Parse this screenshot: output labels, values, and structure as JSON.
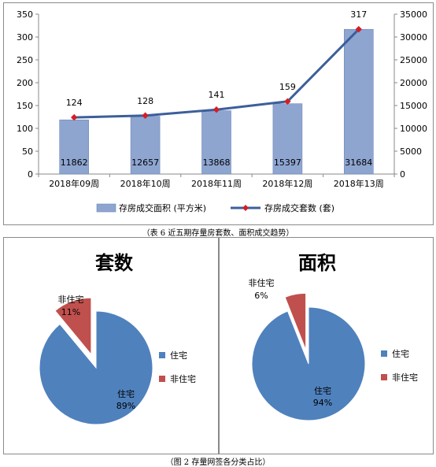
{
  "chart_data": [
    {
      "type": "bar+line",
      "categories": [
        "2018年09周",
        "2018年10周",
        "2018年11周",
        "2018年12周",
        "2018年13周"
      ],
      "series": [
        {
          "name": "存房成交面积 (平方米)",
          "type": "bar",
          "axis": "right",
          "values": [
            11862,
            12657,
            13868,
            15397,
            31684
          ],
          "color": "#8EA5D0"
        },
        {
          "name": "存房成交套数 (套)",
          "type": "line",
          "axis": "left",
          "values": [
            124,
            128,
            141,
            159,
            317
          ],
          "color": "#3C5F9B",
          "marker_color": "#D21F26"
        }
      ],
      "y_left": {
        "ylim": [
          0,
          350
        ],
        "ticks": [
          0,
          50,
          100,
          150,
          200,
          250,
          300,
          350
        ]
      },
      "y_right": {
        "ylim": [
          0,
          35000
        ],
        "ticks": [
          0,
          5000,
          10000,
          15000,
          20000,
          25000,
          30000,
          35000
        ]
      },
      "grid": false,
      "legend_position": "bottom"
    },
    {
      "type": "pie",
      "title": "套数",
      "slices": [
        {
          "label": "住宅",
          "value": 89,
          "display": "89%",
          "color": "#4F81BD"
        },
        {
          "label": "非住宅",
          "value": 11,
          "display": "11%",
          "color": "#C0504D",
          "exploded": true
        }
      ],
      "legend_position": "right"
    },
    {
      "type": "pie",
      "title": "面积",
      "slices": [
        {
          "label": "住宅",
          "value": 94,
          "display": "94%",
          "color": "#4F81BD"
        },
        {
          "label": "非住宅",
          "value": 6,
          "display": "6%",
          "color": "#C0504D",
          "exploded": true
        }
      ],
      "legend_position": "right"
    }
  ],
  "captions": {
    "top": "（表 6 近五期存量房套数、面积成交趋势）",
    "bottom": "（图 2 存量网签各分类占比）"
  }
}
